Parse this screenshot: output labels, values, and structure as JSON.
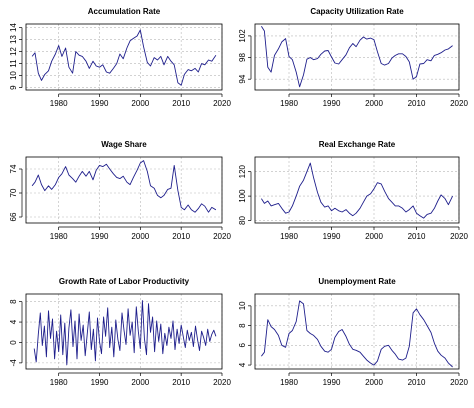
{
  "figure": {
    "line_color": "#1f1f8c",
    "grid_color": "#b8b8b8",
    "grid": true
  },
  "chart_data": [
    {
      "type": "line",
      "title": "Accumulation Rate",
      "xlabel": "",
      "ylabel": "",
      "xlim": [
        1972,
        2020
      ],
      "ylim": [
        8.8,
        14.3
      ],
      "xticks": [
        1980,
        1990,
        2000,
        2010,
        2020
      ],
      "yticks": [
        9,
        10,
        11,
        12,
        13,
        14
      ],
      "xtick_labels": [
        "1980",
        "1990",
        "2000",
        "2010",
        "2020"
      ],
      "ytick_labels": [
        "9",
        "10",
        "11",
        "12",
        "13",
        "14"
      ],
      "series": [
        {
          "x": [
            1973.5,
            1974.2,
            1975,
            1975.8,
            1976.6,
            1977.5,
            1978.3,
            1979.2,
            1980,
            1980.8,
            1981.7,
            1982.5,
            1983.4,
            1984.2,
            1985,
            1985.8,
            1986.7,
            1987.5,
            1988.4,
            1989.2,
            1990,
            1990.8,
            1991.7,
            1992.5,
            1993.4,
            1994.2,
            1995,
            1995.8,
            1996.7,
            1997.5,
            1998.3,
            1999.2,
            2000,
            2000.8,
            2001.7,
            2002.5,
            2003.4,
            2004.2,
            2005,
            2005.8,
            2006.7,
            2007.5,
            2008.3,
            2009.2,
            2010,
            2010.8,
            2011.7,
            2012.5,
            2013.4,
            2014.2,
            2015,
            2015.8,
            2016.7,
            2017.5,
            2018.5
          ],
          "values": [
            11.6,
            11.9,
            10.2,
            9.6,
            10.1,
            10.4,
            11.2,
            11.8,
            12.5,
            11.6,
            12.3,
            10.7,
            10.2,
            12.0,
            11.7,
            11.6,
            11.2,
            10.6,
            11.2,
            10.8,
            10.7,
            10.9,
            10.3,
            10.2,
            10.6,
            11.0,
            11.8,
            11.4,
            12.3,
            12.9,
            13.1,
            13.3,
            13.8,
            12.4,
            11.1,
            10.8,
            11.5,
            11.3,
            11.6,
            10.9,
            11.6,
            11.2,
            10.9,
            9.4,
            9.2,
            10.1,
            10.5,
            10.4,
            10.6,
            10.3,
            11.0,
            10.9,
            11.3,
            11.2,
            11.7
          ]
        }
      ]
    },
    {
      "type": "line",
      "title": "Capacity Utilization Rate",
      "xlabel": "",
      "ylabel": "",
      "xlim": [
        1972,
        2020
      ],
      "ylim": [
        92,
        104.2
      ],
      "xticks": [
        1980,
        1990,
        2000,
        2010,
        2020
      ],
      "yticks": [
        94,
        98,
        102
      ],
      "xtick_labels": [
        "1980",
        "1990",
        "2000",
        "2010",
        "2020"
      ],
      "ytick_labels": [
        "94",
        "98",
        "102"
      ],
      "series": [
        {
          "x": [
            1973.5,
            1974.2,
            1975,
            1975.8,
            1976.6,
            1977.5,
            1978.3,
            1979.2,
            1980,
            1980.8,
            1981.7,
            1982.5,
            1983.4,
            1984.2,
            1985,
            1985.8,
            1986.7,
            1987.5,
            1988.4,
            1989.2,
            1990,
            1990.8,
            1991.7,
            1992.5,
            1993.4,
            1994.2,
            1995,
            1995.8,
            1996.7,
            1997.5,
            1998.3,
            1999.2,
            2000,
            2000.8,
            2001.7,
            2002.5,
            2003.4,
            2004.2,
            2005,
            2005.8,
            2006.7,
            2007.5,
            2008.3,
            2009.2,
            2010,
            2010.8,
            2011.7,
            2012.5,
            2013.4,
            2014.2,
            2015,
            2015.8,
            2016.7,
            2017.5,
            2018.5
          ],
          "values": [
            103.8,
            102.9,
            96.2,
            95.3,
            98.4,
            99.6,
            100.9,
            101.5,
            98.2,
            97.6,
            95.3,
            92.6,
            94.8,
            97.7,
            98.0,
            97.6,
            97.8,
            98.6,
            99.2,
            99.3,
            98.1,
            97.0,
            96.8,
            97.6,
            98.5,
            99.8,
            100.6,
            100.0,
            101.2,
            101.8,
            101.4,
            101.6,
            101.3,
            99.1,
            96.9,
            96.6,
            96.9,
            97.9,
            98.4,
            98.7,
            98.7,
            98.2,
            97.2,
            94.0,
            94.5,
            96.8,
            96.9,
            97.6,
            97.4,
            98.4,
            98.6,
            98.9,
            99.4,
            99.6,
            100.2
          ]
        }
      ]
    },
    {
      "type": "line",
      "title": "Wage Share",
      "xlabel": "",
      "ylabel": "",
      "xlim": [
        1972,
        2020
      ],
      "ylim": [
        65,
        76
      ],
      "xticks": [
        1980,
        1990,
        2000,
        2010,
        2020
      ],
      "yticks": [
        66,
        70,
        74
      ],
      "xtick_labels": [
        "1980",
        "1990",
        "2000",
        "2010",
        "2020"
      ],
      "ytick_labels": [
        "66",
        "70",
        "74"
      ],
      "series": [
        {
          "x": [
            1973.5,
            1974.2,
            1975,
            1975.8,
            1976.6,
            1977.5,
            1978.3,
            1979.2,
            1980,
            1980.8,
            1981.7,
            1982.5,
            1983.4,
            1984.2,
            1985,
            1985.8,
            1986.7,
            1987.5,
            1988.4,
            1989.2,
            1990,
            1990.8,
            1991.7,
            1992.5,
            1993.4,
            1994.2,
            1995,
            1995.8,
            1996.7,
            1997.5,
            1998.3,
            1999.2,
            2000,
            2000.8,
            2001.7,
            2002.5,
            2003.4,
            2004.2,
            2005,
            2005.8,
            2006.7,
            2007.5,
            2008.3,
            2009.2,
            2010,
            2010.8,
            2011.7,
            2012.5,
            2013.4,
            2014.2,
            2015,
            2015.8,
            2016.7,
            2017.5,
            2018.5
          ],
          "values": [
            71.2,
            71.8,
            73.0,
            71.4,
            70.4,
            71.2,
            70.6,
            71.4,
            72.6,
            73.2,
            74.4,
            73.0,
            72.4,
            71.8,
            72.8,
            73.6,
            72.8,
            73.6,
            72.2,
            73.8,
            74.6,
            74.4,
            74.8,
            74.0,
            73.2,
            72.6,
            72.4,
            72.8,
            71.8,
            71.4,
            72.6,
            73.8,
            75.0,
            75.4,
            73.6,
            71.2,
            70.8,
            69.6,
            69.2,
            69.6,
            70.6,
            70.8,
            74.6,
            70.4,
            67.6,
            67.2,
            68.0,
            67.2,
            66.8,
            67.4,
            68.2,
            67.8,
            66.8,
            67.6,
            67.2
          ]
        }
      ]
    },
    {
      "type": "line",
      "title": "Real Exchange Rate",
      "xlabel": "",
      "ylabel": "",
      "xlim": [
        1972,
        2020
      ],
      "ylim": [
        78,
        132
      ],
      "xticks": [
        1980,
        1990,
        2000,
        2010,
        2020
      ],
      "yticks": [
        80,
        100,
        120
      ],
      "xtick_labels": [
        "1980",
        "1990",
        "2000",
        "2010",
        "2020"
      ],
      "ytick_labels": [
        "80",
        "100",
        "120"
      ],
      "series": [
        {
          "x": [
            1973.5,
            1974.2,
            1975,
            1975.8,
            1976.6,
            1977.5,
            1978.3,
            1979.2,
            1980,
            1980.8,
            1981.7,
            1982.5,
            1983.4,
            1984.2,
            1985,
            1985.8,
            1986.7,
            1987.5,
            1988.4,
            1989.2,
            1990,
            1990.8,
            1991.7,
            1992.5,
            1993.4,
            1994.2,
            1995,
            1995.8,
            1996.7,
            1997.5,
            1998.3,
            1999.2,
            2000,
            2000.8,
            2001.7,
            2002.5,
            2003.4,
            2004.2,
            2005,
            2005.8,
            2006.7,
            2007.5,
            2008.3,
            2009.2,
            2010,
            2010.8,
            2011.7,
            2012.5,
            2013.4,
            2014.2,
            2015,
            2015.8,
            2016.7,
            2017.5,
            2018.5
          ],
          "values": [
            98,
            94,
            96,
            92,
            93,
            94,
            90,
            86,
            87,
            92,
            100,
            108,
            113,
            120,
            127,
            115,
            103,
            95,
            91,
            92,
            88,
            90,
            88,
            87,
            89,
            86,
            84,
            86,
            90,
            95,
            100,
            102,
            106,
            111,
            110,
            104,
            98,
            95,
            92,
            92,
            90,
            87,
            89,
            92,
            86,
            84,
            82,
            85,
            86,
            90,
            96,
            101,
            98,
            93,
            100
          ]
        }
      ]
    },
    {
      "type": "line",
      "title": "Growth Rate of Labor Productivity",
      "xlabel": "",
      "ylabel": "",
      "xlim": [
        1972,
        2020
      ],
      "ylim": [
        -5.2,
        9.5
      ],
      "xticks": [
        1980,
        1990,
        2000,
        2010,
        2020
      ],
      "yticks": [
        -4,
        0,
        4,
        8
      ],
      "xtick_labels": [
        "1980",
        "1990",
        "2000",
        "2010",
        "2020"
      ],
      "ytick_labels": [
        "-4",
        "0",
        "4",
        "8"
      ],
      "series": [
        {
          "x": [
            1974,
            1974.5,
            1975,
            1975.5,
            1976,
            1976.5,
            1977,
            1977.5,
            1978,
            1978.5,
            1979,
            1979.5,
            1980,
            1980.5,
            1981,
            1981.5,
            1982,
            1982.5,
            1983,
            1983.5,
            1984,
            1984.5,
            1985,
            1985.5,
            1986,
            1986.5,
            1987,
            1987.5,
            1988,
            1988.5,
            1989,
            1989.5,
            1990,
            1990.5,
            1991,
            1991.5,
            1992,
            1992.5,
            1993,
            1993.5,
            1994,
            1994.5,
            1995,
            1995.5,
            1996,
            1996.5,
            1997,
            1997.5,
            1998,
            1998.5,
            1999,
            1999.5,
            2000,
            2000.5,
            2001,
            2001.5,
            2002,
            2002.5,
            2003,
            2003.5,
            2004,
            2004.5,
            2005,
            2005.5,
            2006,
            2006.5,
            2007,
            2007.5,
            2008,
            2008.5,
            2009,
            2009.5,
            2010,
            2010.5,
            2011,
            2011.5,
            2012,
            2012.5,
            2013,
            2013.5,
            2014,
            2014.5,
            2015,
            2015.5,
            2016,
            2016.5,
            2017,
            2017.5,
            2018,
            2018.5
          ],
          "values": [
            -1.2,
            -3.8,
            1.6,
            5.8,
            -0.6,
            3.2,
            -2.8,
            6.2,
            0.8,
            4.6,
            -3.2,
            2.2,
            -1.8,
            5.4,
            -2.4,
            3.8,
            -4.4,
            2.8,
            6.4,
            -0.8,
            4.2,
            -3.2,
            5.6,
            0.4,
            3.4,
            -2.6,
            1.8,
            6.0,
            -1.4,
            2.6,
            -3.6,
            4.8,
            0.2,
            -2.2,
            5.0,
            1.2,
            6.8,
            -1.0,
            3.0,
            -2.8,
            4.4,
            0.6,
            -1.6,
            5.8,
            2.4,
            -0.4,
            6.6,
            1.4,
            4.0,
            -2.0,
            7.0,
            2.2,
            -1.2,
            8.2,
            0.8,
            -2.4,
            7.6,
            2.0,
            5.0,
            -1.8,
            4.2,
            0.2,
            3.6,
            -2.2,
            1.8,
            -0.6,
            3.0,
            0.8,
            4.2,
            -1.4,
            2.6,
            -0.2,
            3.4,
            1.2,
            -1.0,
            2.4,
            0.4,
            2.0,
            -0.8,
            3.2,
            0.6,
            -1.6,
            2.2,
            1.0,
            -0.6,
            2.6,
            0.2,
            1.6,
            2.4,
            1.2
          ]
        }
      ]
    },
    {
      "type": "line",
      "title": "Unemployment Rate",
      "xlabel": "",
      "ylabel": "",
      "xlim": [
        1972,
        2020
      ],
      "ylim": [
        3.6,
        11.2
      ],
      "xticks": [
        1980,
        1990,
        2000,
        2010,
        2020
      ],
      "yticks": [
        4,
        6,
        8,
        10
      ],
      "xtick_labels": [
        "1980",
        "1990",
        "2000",
        "2010",
        "2020"
      ],
      "ytick_labels": [
        "4",
        "6",
        "8",
        "10"
      ],
      "series": [
        {
          "x": [
            1973.5,
            1974.2,
            1975,
            1975.8,
            1976.6,
            1977.5,
            1978.3,
            1979.2,
            1980,
            1980.8,
            1981.7,
            1982.5,
            1983.4,
            1984.2,
            1985,
            1985.8,
            1986.7,
            1987.5,
            1988.4,
            1989.2,
            1990,
            1990.8,
            1991.7,
            1992.5,
            1993.4,
            1994.2,
            1995,
            1995.8,
            1996.7,
            1997.5,
            1998.3,
            1999.2,
            2000,
            2000.8,
            2001.7,
            2002.5,
            2003.4,
            2004.2,
            2005,
            2005.8,
            2006.7,
            2007.5,
            2008.3,
            2009.2,
            2010,
            2010.8,
            2011.7,
            2012.5,
            2013.4,
            2014.2,
            2015,
            2015.8,
            2016.7,
            2017.5,
            2018.5
          ],
          "values": [
            4.9,
            5.3,
            8.6,
            7.9,
            7.6,
            7.0,
            6.0,
            5.8,
            7.2,
            7.5,
            8.4,
            10.5,
            10.2,
            7.5,
            7.2,
            7.0,
            6.6,
            5.9,
            5.4,
            5.3,
            5.6,
            6.8,
            7.4,
            7.6,
            6.9,
            6.1,
            5.6,
            5.5,
            5.3,
            4.9,
            4.5,
            4.2,
            4.0,
            4.4,
            5.6,
            5.9,
            6.0,
            5.5,
            5.1,
            4.6,
            4.5,
            4.7,
            5.9,
            9.3,
            9.7,
            9.1,
            8.6,
            8.0,
            7.3,
            6.2,
            5.4,
            5.0,
            4.7,
            4.2,
            3.8
          ]
        }
      ]
    }
  ]
}
